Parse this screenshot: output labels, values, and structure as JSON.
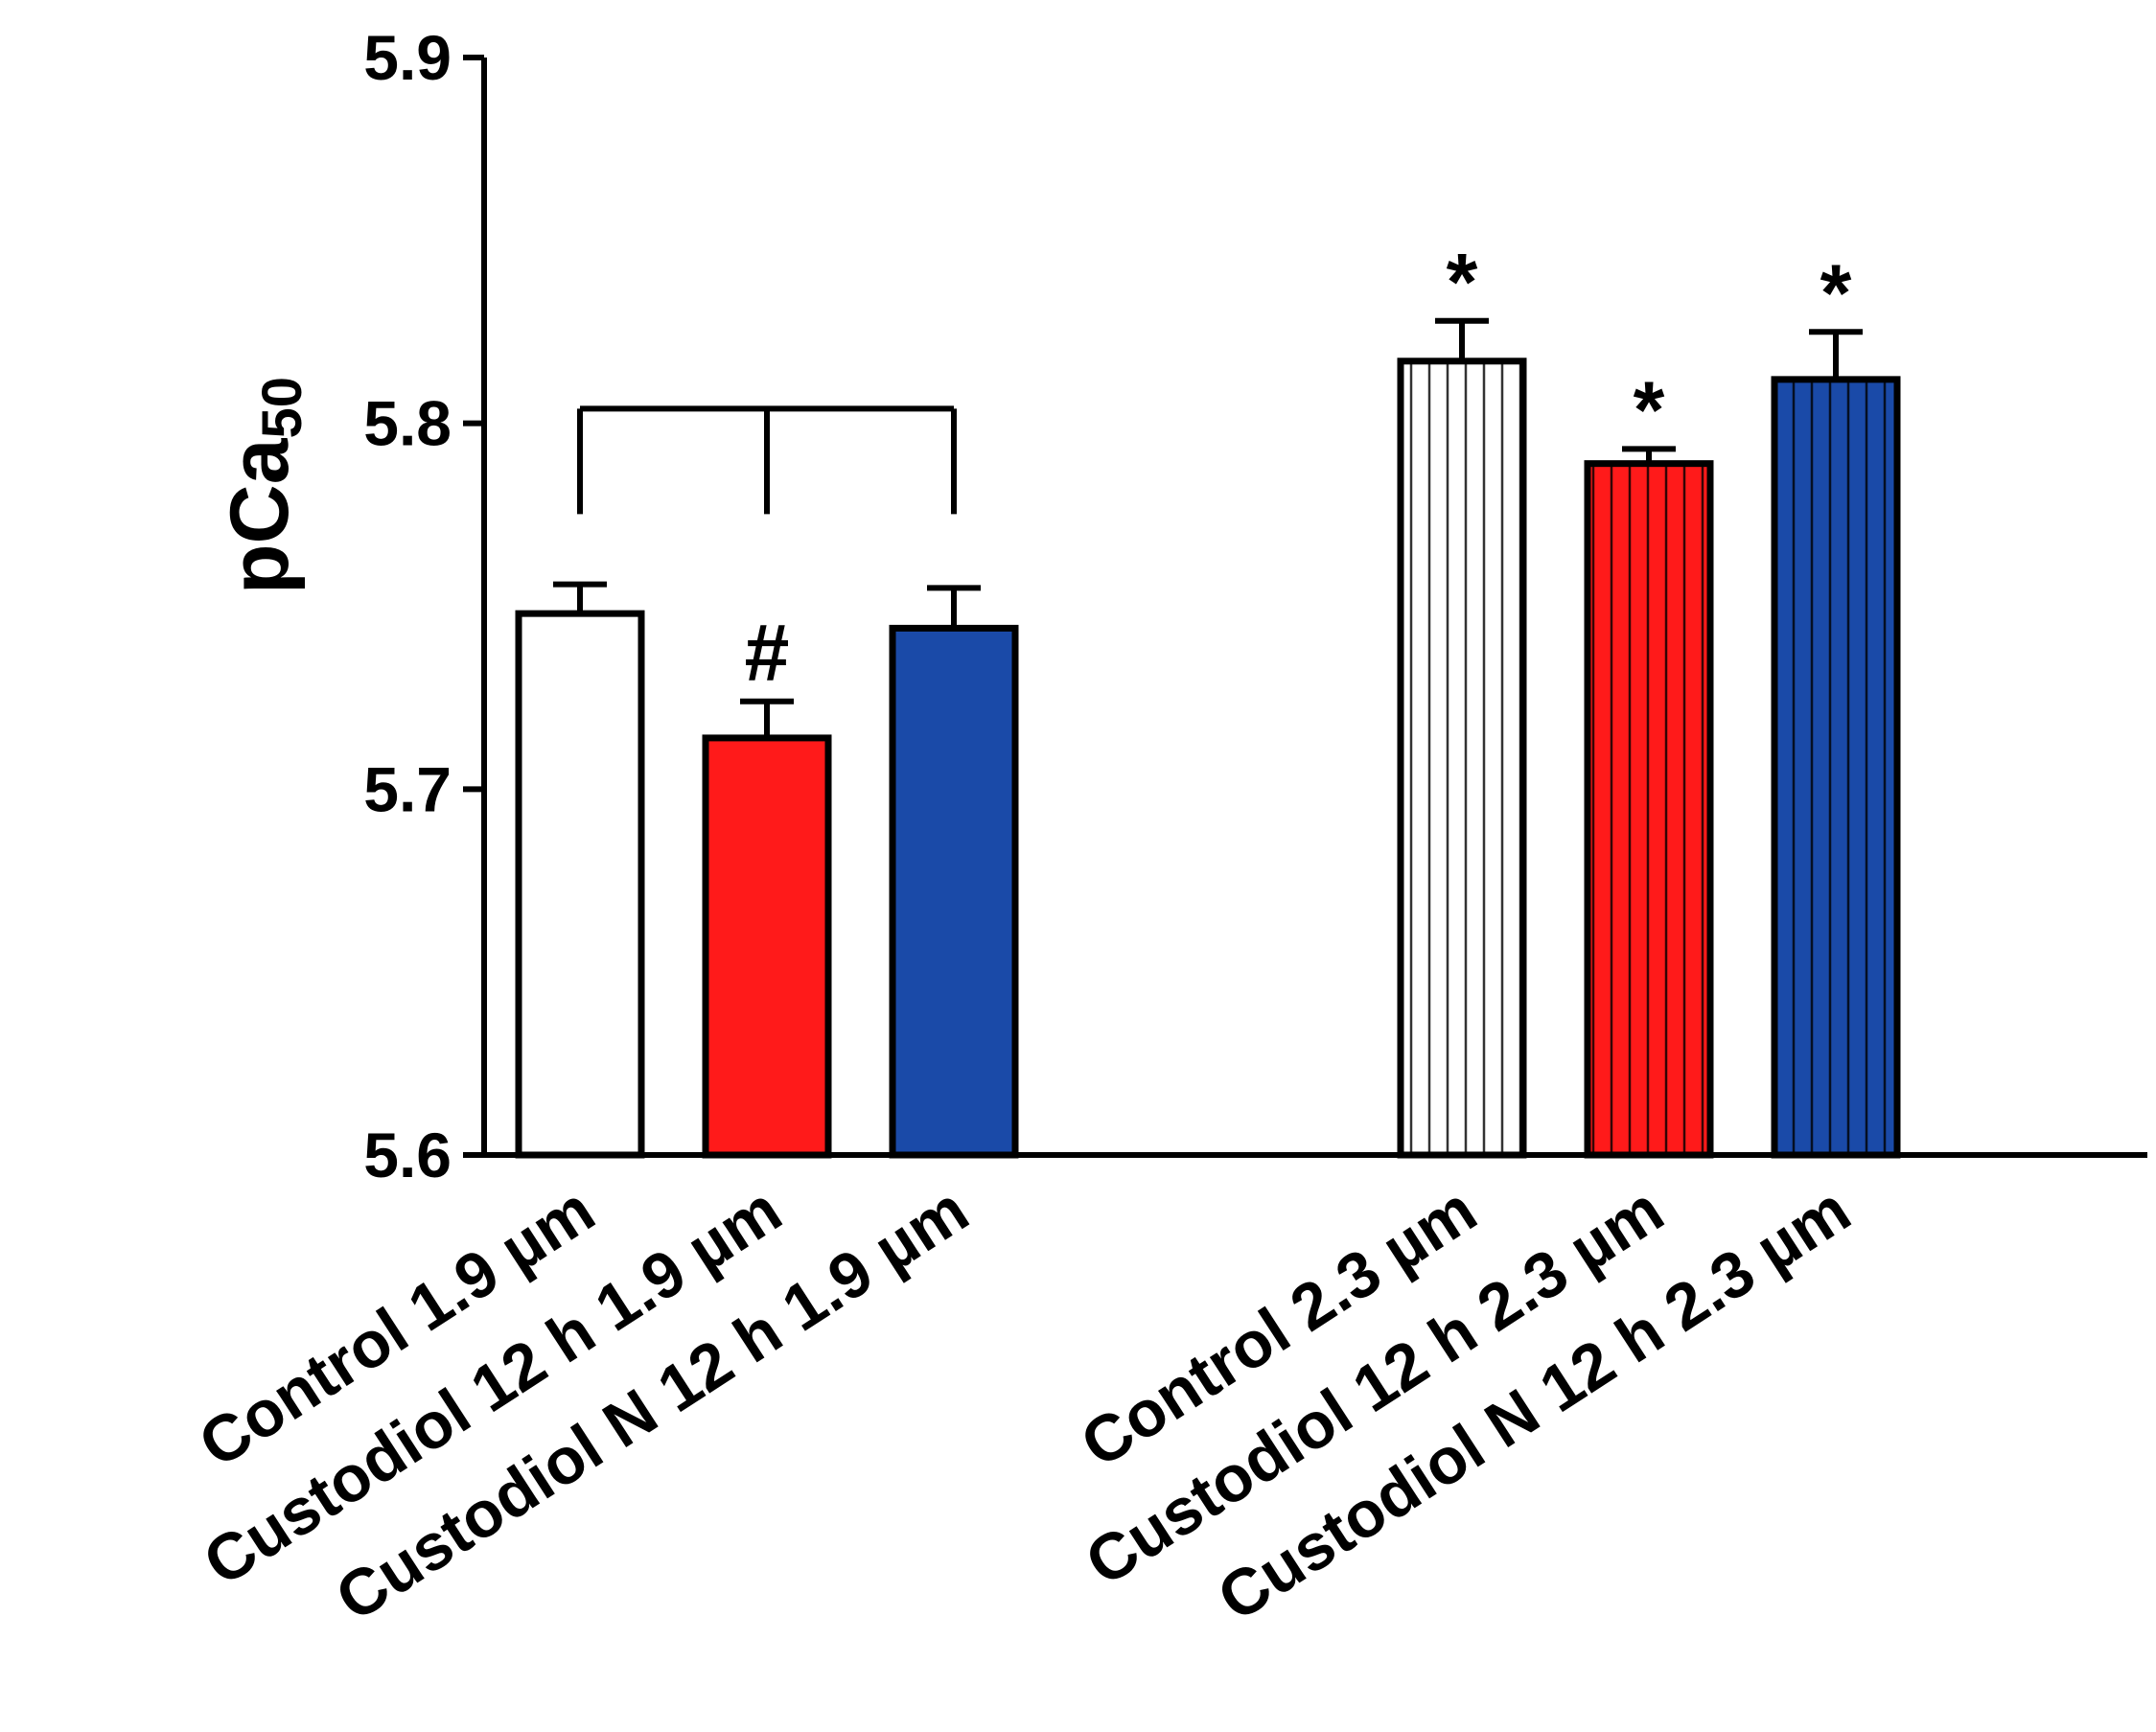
{
  "chart_data": {
    "type": "bar",
    "title": "",
    "xlabel": "",
    "ylabel_main": "pCa",
    "ylabel_sub": "50",
    "ylim": [
      5.6,
      5.9
    ],
    "yticks": [
      "5.6",
      "5.7",
      "5.8",
      "5.9"
    ],
    "grid": false,
    "bars": [
      {
        "category": "Control 1.9 µm",
        "value": 5.748,
        "error": 0.008,
        "fill": "#ffffff",
        "hatch": false,
        "annotation": ""
      },
      {
        "category": "Custodiol 12 h 1.9 µm",
        "value": 5.714,
        "error": 0.01,
        "fill": "#ff1a1a",
        "hatch": false,
        "annotation": "#"
      },
      {
        "category": "Custodiol N 12 h 1.9 µm",
        "value": 5.744,
        "error": 0.011,
        "fill": "#1a4aa8",
        "hatch": false,
        "annotation": ""
      },
      {
        "category": "Control 2.3 µm",
        "value": 5.817,
        "error": 0.011,
        "fill": "#ffffff",
        "hatch": true,
        "annotation": "*"
      },
      {
        "category": "Custodiol 12 h 2.3 µm",
        "value": 5.789,
        "error": 0.004,
        "fill": "#ff1a1a",
        "hatch": true,
        "annotation": "*"
      },
      {
        "category": "Custodiol N 12 h 2.3 µm",
        "value": 5.812,
        "error": 0.013,
        "fill": "#1a4aa8",
        "hatch": true,
        "annotation": "*"
      }
    ],
    "comparison_bracket": {
      "from": 0,
      "to": 2,
      "level": 5.804
    }
  }
}
